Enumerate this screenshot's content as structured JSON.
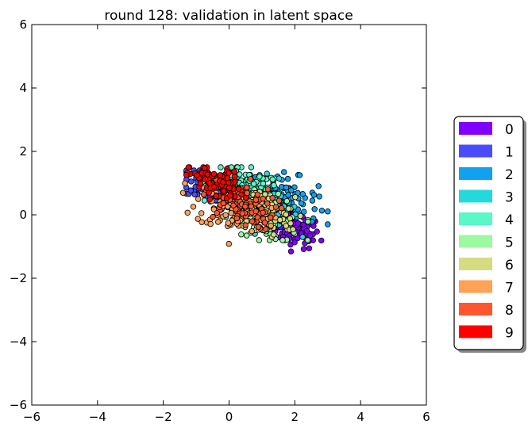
{
  "chart_data": {
    "type": "scatter",
    "title": "round 128: validation in latent space",
    "xlabel": "",
    "ylabel": "",
    "xlim": [
      -6,
      6
    ],
    "ylim": [
      -6,
      6
    ],
    "xticks": [
      -6,
      -4,
      -2,
      0,
      2,
      4,
      6
    ],
    "yticks": [
      -6,
      -4,
      -2,
      0,
      2,
      4,
      6
    ],
    "grid": false,
    "legend_position": "right",
    "legend": [
      {
        "label": "0",
        "color": "#8000ff"
      },
      {
        "label": "1",
        "color": "#4a4cfb"
      },
      {
        "label": "2",
        "color": "#10a2f0"
      },
      {
        "label": "3",
        "color": "#24d8dc"
      },
      {
        "label": "4",
        "color": "#5af8c8"
      },
      {
        "label": "5",
        "color": "#9cf9a0"
      },
      {
        "label": "6",
        "color": "#d4dc7f"
      },
      {
        "label": "7",
        "color": "#ffa256"
      },
      {
        "label": "8",
        "color": "#ff5630"
      },
      {
        "label": "9",
        "color": "#ff0000"
      }
    ],
    "clusters": [
      {
        "class": "0",
        "center": [
          2.0,
          -0.45
        ],
        "spread": [
          0.38,
          0.28
        ],
        "range_x": [
          1.0,
          2.9
        ],
        "range_y": [
          -1.3,
          0.3
        ]
      },
      {
        "class": "1",
        "center": [
          -0.6,
          0.85
        ],
        "spread": [
          0.4,
          0.25
        ],
        "range_x": [
          -1.3,
          0.6
        ],
        "range_y": [
          0.2,
          1.4
        ]
      },
      {
        "class": "2",
        "center": [
          1.7,
          0.55
        ],
        "spread": [
          0.5,
          0.35
        ],
        "range_x": [
          0.5,
          3.0
        ],
        "range_y": [
          -0.3,
          1.4
        ]
      },
      {
        "class": "3",
        "center": [
          1.0,
          0.4
        ],
        "spread": [
          0.55,
          0.4
        ],
        "range_x": [
          -0.5,
          2.3
        ],
        "range_y": [
          -0.7,
          1.4
        ]
      },
      {
        "class": "4",
        "center": [
          0.5,
          0.9
        ],
        "spread": [
          0.55,
          0.3
        ],
        "range_x": [
          -0.8,
          1.8
        ],
        "range_y": [
          0.0,
          1.5
        ]
      },
      {
        "class": "5",
        "center": [
          1.2,
          -0.1
        ],
        "spread": [
          0.5,
          0.35
        ],
        "range_x": [
          0.0,
          2.4
        ],
        "range_y": [
          -0.8,
          0.9
        ]
      },
      {
        "class": "6",
        "center": [
          1.0,
          0.1
        ],
        "spread": [
          0.5,
          0.35
        ],
        "range_x": [
          -0.2,
          2.2
        ],
        "range_y": [
          -0.7,
          1.0
        ]
      },
      {
        "class": "7",
        "center": [
          0.1,
          0.2
        ],
        "spread": [
          0.55,
          0.4
        ],
        "range_x": [
          -1.4,
          1.8
        ],
        "range_y": [
          -1.0,
          1.9
        ]
      },
      {
        "class": "8",
        "center": [
          0.3,
          0.4
        ],
        "spread": [
          0.55,
          0.35
        ],
        "range_x": [
          -1.1,
          1.6
        ],
        "range_y": [
          -0.6,
          1.6
        ]
      },
      {
        "class": "9",
        "center": [
          -0.4,
          1.0
        ],
        "spread": [
          0.4,
          0.25
        ],
        "range_x": [
          -1.3,
          0.8
        ],
        "range_y": [
          0.2,
          1.5
        ]
      }
    ],
    "points_per_class": 90
  }
}
